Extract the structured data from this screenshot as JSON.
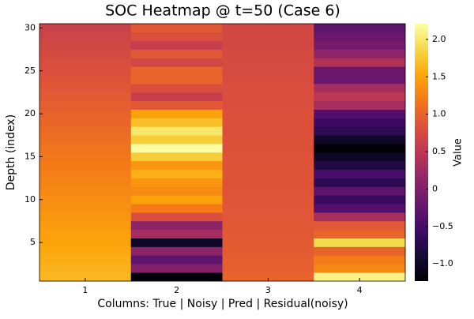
{
  "chart_data": {
    "type": "heatmap",
    "title": "SOC Heatmap @ t=50 (Case 6)",
    "x_label": "Columns: True | Noisy | Pred | Residual(noisy)",
    "y_label": "Depth (index)",
    "colorbar_label": "Value",
    "colormap": "inferno",
    "x": [
      1,
      2,
      3,
      4
    ],
    "y": [
      1,
      2,
      3,
      4,
      5,
      6,
      7,
      8,
      9,
      10,
      11,
      12,
      13,
      14,
      15,
      16,
      17,
      18,
      19,
      20,
      21,
      22,
      23,
      24,
      25,
      26,
      27,
      28,
      29,
      30
    ],
    "values": [
      [
        1.65,
        -1.2,
        1.0,
        2.1
      ],
      [
        1.62,
        0.0,
        0.95,
        1.3
      ],
      [
        1.58,
        -0.3,
        0.95,
        1.2
      ],
      [
        1.55,
        0.1,
        0.93,
        1.0
      ],
      [
        1.51,
        -1.0,
        0.92,
        1.9
      ],
      [
        1.48,
        0.3,
        0.9,
        1.0
      ],
      [
        1.44,
        0.1,
        0.9,
        0.9
      ],
      [
        1.41,
        0.8,
        0.88,
        0.3
      ],
      [
        1.37,
        1.2,
        0.88,
        -0.4
      ],
      [
        1.34,
        1.5,
        0.87,
        -0.6
      ],
      [
        1.3,
        1.3,
        0.86,
        -0.3
      ],
      [
        1.27,
        1.4,
        0.85,
        -0.7
      ],
      [
        1.23,
        1.6,
        0.85,
        -0.5
      ],
      [
        1.2,
        1.4,
        0.84,
        -0.8
      ],
      [
        1.16,
        1.8,
        0.84,
        -1.0
      ],
      [
        1.13,
        2.2,
        0.83,
        -1.2
      ],
      [
        1.09,
        1.8,
        0.83,
        -1.0
      ],
      [
        1.06,
        2.0,
        0.82,
        -0.7
      ],
      [
        1.02,
        1.7,
        0.82,
        -0.6
      ],
      [
        0.99,
        1.5,
        0.81,
        -0.4
      ],
      [
        0.95,
        0.9,
        0.8,
        0.3
      ],
      [
        0.92,
        0.6,
        0.8,
        0.5
      ],
      [
        0.88,
        0.8,
        0.78,
        0.3
      ],
      [
        0.85,
        1.0,
        0.77,
        -0.2
      ],
      [
        0.81,
        1.0,
        0.76,
        -0.2
      ],
      [
        0.78,
        0.7,
        0.75,
        0.4
      ],
      [
        0.74,
        0.9,
        0.74,
        0.1
      ],
      [
        0.71,
        0.6,
        0.73,
        -0.1
      ],
      [
        0.67,
        0.8,
        0.72,
        -0.2
      ],
      [
        0.64,
        0.9,
        0.7,
        -0.3
      ]
    ],
    "xlim": [
      0.5,
      4.5
    ],
    "xticks": [
      1,
      2,
      3,
      4
    ],
    "ylim": [
      0.5,
      30.5
    ],
    "yticks": [
      5,
      10,
      15,
      20,
      25,
      30
    ],
    "clim": [
      -1.23,
      2.21
    ],
    "cticks": [
      {
        "value": -1.0,
        "label": "−1.0"
      },
      {
        "value": -0.5,
        "label": "−0.5"
      },
      0,
      0.5,
      {
        "value": 1.0,
        "label": "1.0"
      },
      1.5,
      {
        "value": 2.0,
        "label": "2.0"
      }
    ]
  }
}
